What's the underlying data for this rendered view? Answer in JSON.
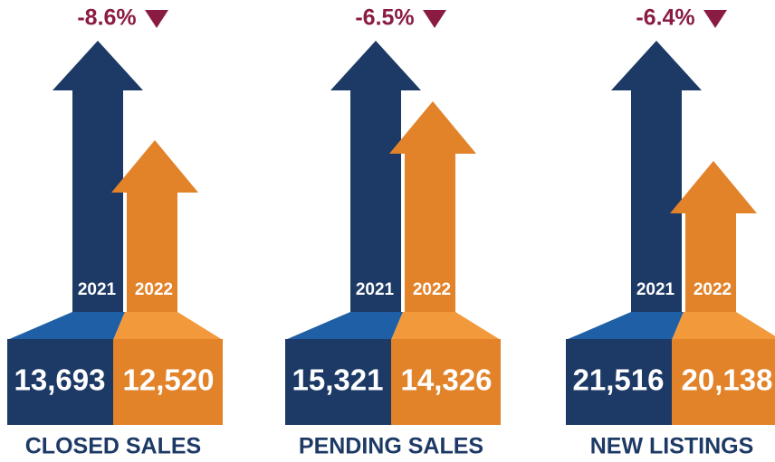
{
  "panels": [
    {
      "label": "CLOSED SALES",
      "change": "-8.6%",
      "year_a": "2021",
      "year_b": "2022",
      "value_a": "13,693",
      "value_b": "12,520"
    },
    {
      "label": "PENDING SALES",
      "change": "-6.5%",
      "year_a": "2021",
      "year_b": "2022",
      "value_a": "15,321",
      "value_b": "14,326"
    },
    {
      "label": "NEW LISTINGS",
      "change": "-6.4%",
      "year_a": "2021",
      "year_b": "2022",
      "value_a": "21,516",
      "value_b": "20,138"
    }
  ]
}
